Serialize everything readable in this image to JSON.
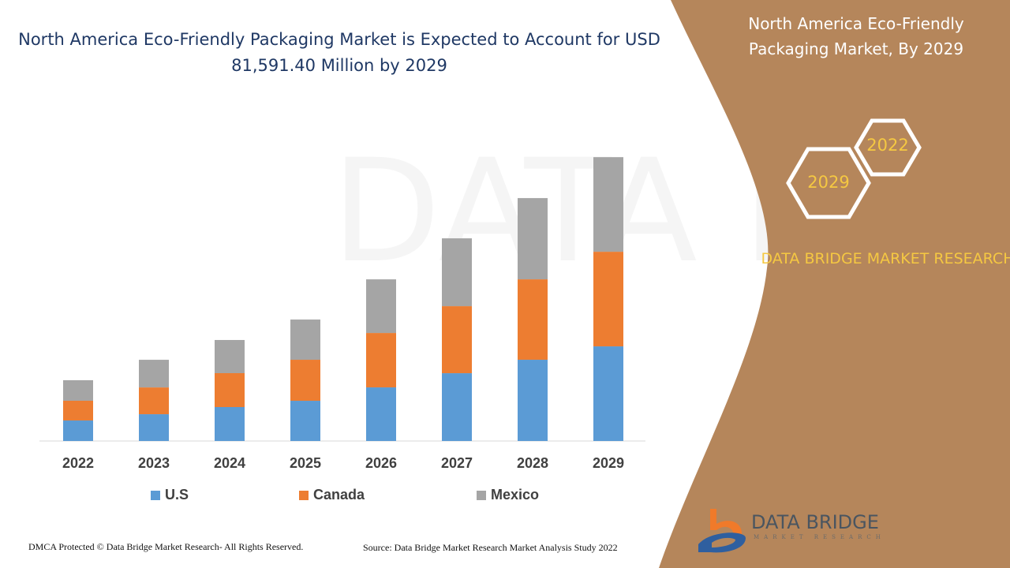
{
  "title": "North America Eco-Friendly Packaging Market is Expected to Account for USD 81,591.40 Million by 2029",
  "panel": {
    "title": "North America Eco-Friendly Packaging Market, By 2029",
    "hex_start": "2022",
    "hex_end": "2029",
    "brand": "DATA BRIDGE MARKET RESEARCH",
    "logo_text": "DATA BRIDGE",
    "logo_sub": "MARKET RESEARCH",
    "color": "#b5865b",
    "accent": "#f5c842"
  },
  "footer": {
    "left": "DMCA Protected © Data Bridge Market Research- All Rights Reserved.",
    "right": "Source: Data Bridge Market Research Market Analysis Study 2022"
  },
  "chart_data": {
    "type": "bar",
    "stacked": true,
    "categories": [
      "2022",
      "2023",
      "2024",
      "2025",
      "2026",
      "2027",
      "2028",
      "2029"
    ],
    "series": [
      {
        "name": "U.S",
        "color": "#5b9bd5",
        "values": [
          5900,
          7700,
          9750,
          11560,
          15410,
          19490,
          23350,
          27200
        ]
      },
      {
        "name": "Canada",
        "color": "#ed7d31",
        "values": [
          5670,
          7700,
          9750,
          11790,
          15640,
          19270,
          23120,
          27200
        ]
      },
      {
        "name": "Mexico",
        "color": "#a5a5a5",
        "values": [
          5900,
          7940,
          9530,
          11560,
          15410,
          19490,
          23350,
          27190
        ]
      }
    ],
    "ylim": [
      0,
      100000
    ],
    "grid": false,
    "legend": "bottom"
  }
}
